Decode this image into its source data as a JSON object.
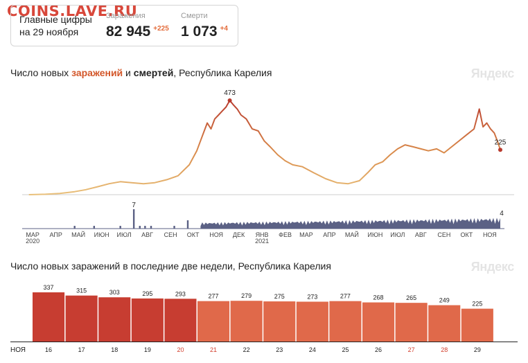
{
  "watermark": "COINS.LAVE.RU",
  "summary": {
    "label_line1": "Главные цифры",
    "label_line2": "на 29 ноября",
    "infections_caption": "Заражения",
    "infections_value": "82 945",
    "infections_delta": "+225",
    "deaths_caption": "Смерти",
    "deaths_value": "1 073",
    "deaths_delta": "+4"
  },
  "chart1": {
    "title_pre": "Число новых ",
    "title_infections": "заражений",
    "title_mid": " и ",
    "title_deaths": "смертей",
    "title_post": ", Республика Карелия",
    "brand": "Яндекс"
  },
  "chart2": {
    "title": "Число новых заражений в последние две недели, Республика Карелия",
    "brand": "Яндекс"
  },
  "colors": {
    "low": "#e9c07a",
    "mid": "#d98a4a",
    "high": "#b83a2e",
    "deaths": "#5b6185",
    "bar_red": "#c73d31",
    "bar_orange": "#e0694a",
    "weekend": "#d3402f"
  },
  "chart_data": [
    {
      "type": "line",
      "series_label": "Заражения",
      "x_range": [
        "2020-03-01",
        "2021-11-29"
      ],
      "month_labels": [
        "МАР",
        "АПР",
        "МАЙ",
        "ИЮН",
        "ИЮЛ",
        "АВГ",
        "СЕН",
        "ОКТ",
        "НОЯ",
        "ДЕК",
        "ЯНВ",
        "ФЕВ",
        "МАР",
        "АПР",
        "МАЙ",
        "ИЮН",
        "ИЮЛ",
        "АВГ",
        "СЕН",
        "ОКТ",
        "НОЯ"
      ],
      "year_labels": [
        {
          "under": "МАР",
          "text": "2020"
        },
        {
          "under": "ЯНВ",
          "text": "2021"
        }
      ],
      "ylim": [
        0,
        473
      ],
      "points": [
        [
          "2020-03-10",
          0
        ],
        [
          "2020-04-01",
          2
        ],
        [
          "2020-04-20",
          6
        ],
        [
          "2020-05-10",
          15
        ],
        [
          "2020-05-25",
          25
        ],
        [
          "2020-06-10",
          40
        ],
        [
          "2020-06-25",
          55
        ],
        [
          "2020-07-10",
          65
        ],
        [
          "2020-07-25",
          60
        ],
        [
          "2020-08-10",
          55
        ],
        [
          "2020-08-25",
          60
        ],
        [
          "2020-09-10",
          75
        ],
        [
          "2020-09-25",
          95
        ],
        [
          "2020-10-10",
          150
        ],
        [
          "2020-10-20",
          220
        ],
        [
          "2020-10-28",
          300
        ],
        [
          "2020-11-03",
          360
        ],
        [
          "2020-11-08",
          330
        ],
        [
          "2020-11-13",
          380
        ],
        [
          "2020-11-18",
          400
        ],
        [
          "2020-11-23",
          420
        ],
        [
          "2020-11-28",
          440
        ],
        [
          "2020-12-03",
          473
        ],
        [
          "2020-12-08",
          450
        ],
        [
          "2020-12-13",
          430
        ],
        [
          "2020-12-18",
          400
        ],
        [
          "2020-12-25",
          380
        ],
        [
          "2021-01-02",
          330
        ],
        [
          "2021-01-10",
          320
        ],
        [
          "2021-01-18",
          270
        ],
        [
          "2021-01-26",
          240
        ],
        [
          "2021-02-05",
          200
        ],
        [
          "2021-02-15",
          170
        ],
        [
          "2021-02-25",
          150
        ],
        [
          "2021-03-10",
          140
        ],
        [
          "2021-03-25",
          110
        ],
        [
          "2021-04-10",
          80
        ],
        [
          "2021-04-25",
          60
        ],
        [
          "2021-05-10",
          55
        ],
        [
          "2021-05-25",
          70
        ],
        [
          "2021-06-05",
          110
        ],
        [
          "2021-06-15",
          150
        ],
        [
          "2021-06-25",
          165
        ],
        [
          "2021-07-05",
          200
        ],
        [
          "2021-07-15",
          230
        ],
        [
          "2021-07-25",
          250
        ],
        [
          "2021-08-05",
          240
        ],
        [
          "2021-08-15",
          230
        ],
        [
          "2021-08-25",
          220
        ],
        [
          "2021-09-05",
          230
        ],
        [
          "2021-09-15",
          210
        ],
        [
          "2021-09-25",
          240
        ],
        [
          "2021-10-05",
          270
        ],
        [
          "2021-10-15",
          300
        ],
        [
          "2021-10-25",
          330
        ],
        [
          "2021-11-01",
          430
        ],
        [
          "2021-11-06",
          340
        ],
        [
          "2021-11-11",
          360
        ],
        [
          "2021-11-16",
          330
        ],
        [
          "2021-11-21",
          310
        ],
        [
          "2021-11-26",
          260
        ],
        [
          "2021-11-29",
          225
        ]
      ],
      "annotations": [
        {
          "date": "2020-12-03",
          "value": 473,
          "label": "473"
        },
        {
          "date": "2021-11-29",
          "value": 225,
          "label": "225"
        }
      ]
    },
    {
      "type": "bar",
      "series_label": "Смерти",
      "x_range": [
        "2020-03-01",
        "2021-11-29"
      ],
      "ylim": [
        0,
        7
      ],
      "spikes": [
        [
          "2020-05-10",
          1
        ],
        [
          "2020-06-05",
          1
        ],
        [
          "2020-07-10",
          1
        ],
        [
          "2020-07-28",
          7
        ],
        [
          "2020-08-05",
          1
        ],
        [
          "2020-08-12",
          1
        ],
        [
          "2020-08-20",
          1
        ],
        [
          "2020-09-20",
          1
        ],
        [
          "2020-10-08",
          3
        ]
      ],
      "continuous_from": "2020-10-25",
      "continuous_avg": 2,
      "annotations": [
        {
          "date": "2020-07-28",
          "value": 7,
          "label": "7"
        },
        {
          "date": "2021-11-29",
          "value": 4,
          "label": "4"
        }
      ]
    },
    {
      "type": "bar",
      "xlabel_month": "НОЯ",
      "categories": [
        "16",
        "17",
        "18",
        "19",
        "20",
        "21",
        "22",
        "23",
        "24",
        "25",
        "26",
        "27",
        "28",
        "29"
      ],
      "values": [
        337,
        315,
        303,
        295,
        293,
        277,
        279,
        275,
        273,
        277,
        268,
        265,
        249,
        225
      ],
      "weekend_days": [
        "20",
        "21",
        "27",
        "28"
      ],
      "highlight_first_n": 5,
      "ylim": [
        0,
        337
      ]
    }
  ]
}
